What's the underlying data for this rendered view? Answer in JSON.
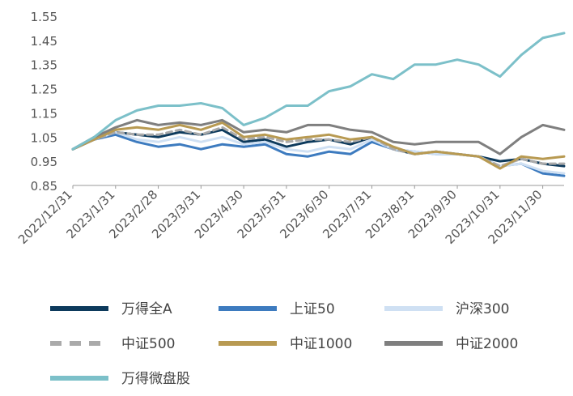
{
  "chart_data": {
    "type": "line",
    "title": "",
    "xlabel": "",
    "ylabel": "",
    "ylim": [
      0.85,
      1.55
    ],
    "yticks": [
      0.85,
      0.95,
      1.05,
      1.15,
      1.25,
      1.35,
      1.45,
      1.55
    ],
    "ytick_labels": [
      "0.85",
      "0.95",
      "1.05",
      "1.15",
      "1.25",
      "1.35",
      "1.45",
      "1.55"
    ],
    "grid": false,
    "legend_position": "bottom",
    "x": [
      "2022/12/31",
      "2023/1/15",
      "2023/1/31",
      "2023/2/15",
      "2023/2/28",
      "2023/3/15",
      "2023/3/31",
      "2023/4/15",
      "2023/4/30",
      "2023/5/15",
      "2023/5/31",
      "2023/6/15",
      "2023/6/30",
      "2023/7/15",
      "2023/7/31",
      "2023/8/15",
      "2023/8/31",
      "2023/9/15",
      "2023/9/30",
      "2023/10/15",
      "2023/10/31",
      "2023/11/15",
      "2023/11/30",
      "2023/12/15"
    ],
    "xtick_labels": [
      "2022/12/31",
      "2023/1/31",
      "2023/2/28",
      "2023/3/31",
      "2023/4/30",
      "2023/5/31",
      "2023/6/30",
      "2023/7/31",
      "2023/8/31",
      "2023/9/30",
      "2023/10/31",
      "2023/11/30"
    ],
    "series": [
      {
        "name": "万得全A",
        "color": "#0d3a5c",
        "dash": "solid",
        "values": [
          1.0,
          1.04,
          1.07,
          1.06,
          1.05,
          1.07,
          1.06,
          1.08,
          1.03,
          1.04,
          1.01,
          1.03,
          1.04,
          1.02,
          1.05,
          1.0,
          0.98,
          0.99,
          0.98,
          0.97,
          0.95,
          0.96,
          0.94,
          0.93
        ]
      },
      {
        "name": "上证50",
        "color": "#3d7bbf",
        "dash": "solid",
        "values": [
          1.0,
          1.04,
          1.06,
          1.03,
          1.01,
          1.02,
          1.0,
          1.02,
          1.01,
          1.02,
          0.98,
          0.97,
          0.99,
          0.98,
          1.03,
          1.0,
          0.99,
          0.98,
          0.98,
          0.97,
          0.93,
          0.94,
          0.9,
          0.89
        ]
      },
      {
        "name": "沪深300",
        "color": "#cfe0f3",
        "dash": "solid",
        "values": [
          1.0,
          1.04,
          1.07,
          1.04,
          1.03,
          1.05,
          1.03,
          1.05,
          1.02,
          1.03,
          1.0,
          0.99,
          1.01,
          1.0,
          1.04,
          1.0,
          0.99,
          0.98,
          0.98,
          0.97,
          0.93,
          0.94,
          0.91,
          0.9
        ]
      },
      {
        "name": "中证500",
        "color": "#aaaaaa",
        "dash": "dashed",
        "values": [
          1.0,
          1.04,
          1.07,
          1.06,
          1.06,
          1.08,
          1.06,
          1.09,
          1.04,
          1.05,
          1.03,
          1.04,
          1.04,
          1.03,
          1.05,
          1.0,
          0.98,
          0.99,
          0.98,
          0.97,
          0.93,
          0.96,
          0.94,
          0.94
        ]
      },
      {
        "name": "中证1000",
        "color": "#b89a52",
        "dash": "solid",
        "values": [
          1.0,
          1.04,
          1.08,
          1.09,
          1.08,
          1.1,
          1.08,
          1.11,
          1.05,
          1.06,
          1.04,
          1.05,
          1.06,
          1.04,
          1.05,
          1.01,
          0.98,
          0.99,
          0.98,
          0.97,
          0.92,
          0.97,
          0.96,
          0.97
        ]
      },
      {
        "name": "中证2000",
        "color": "#7f7f7f",
        "dash": "solid",
        "values": [
          1.0,
          1.05,
          1.09,
          1.12,
          1.1,
          1.11,
          1.1,
          1.12,
          1.07,
          1.08,
          1.07,
          1.1,
          1.1,
          1.08,
          1.07,
          1.03,
          1.02,
          1.03,
          1.03,
          1.03,
          0.98,
          1.05,
          1.1,
          1.08
        ]
      },
      {
        "name": "万得微盘股",
        "color": "#7cc0c9",
        "dash": "solid",
        "values": [
          1.0,
          1.05,
          1.12,
          1.16,
          1.18,
          1.18,
          1.19,
          1.17,
          1.1,
          1.13,
          1.18,
          1.18,
          1.24,
          1.26,
          1.31,
          1.29,
          1.35,
          1.35,
          1.37,
          1.35,
          1.3,
          1.39,
          1.46,
          1.48
        ]
      }
    ]
  }
}
